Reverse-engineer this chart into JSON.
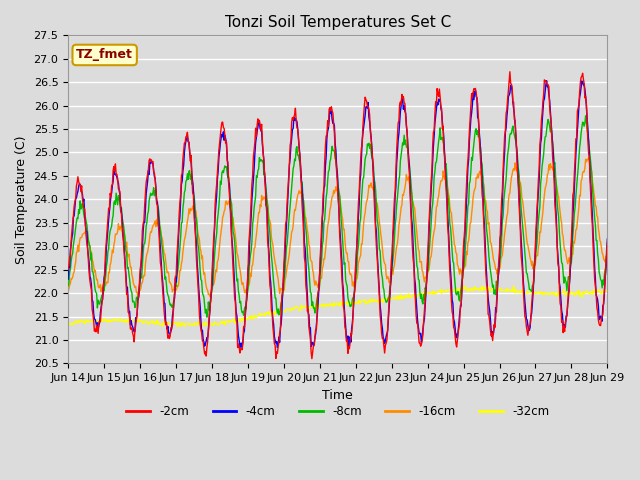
{
  "title": "Tonzi Soil Temperatures Set C",
  "xlabel": "Time",
  "ylabel": "Soil Temperature (C)",
  "ylim": [
    20.5,
    27.5
  ],
  "annotation": "TZ_fmet",
  "annotation_color": "#8B0000",
  "annotation_bg": "#FFFFCC",
  "series_colors": {
    "-2cm": "#FF0000",
    "-4cm": "#0000FF",
    "-8cm": "#00BB00",
    "-16cm": "#FF8C00",
    "-32cm": "#FFFF00"
  },
  "series_linewidth": 1.0,
  "bg_color": "#DCDCDC",
  "grid_color": "#FFFFFF",
  "xtick_labels": [
    "Jun 14",
    "Jun 15",
    "Jun 16",
    "Jun 17",
    "Jun 18",
    "Jun 19",
    "Jun 20",
    "Jun 21",
    "Jun 22",
    "Jun 23",
    "Jun 24",
    "Jun 25",
    "Jun 26",
    "Jun 27",
    "Jun 28",
    "Jun 29"
  ],
  "title_fontsize": 11,
  "axis_fontsize": 9,
  "tick_fontsize": 8
}
